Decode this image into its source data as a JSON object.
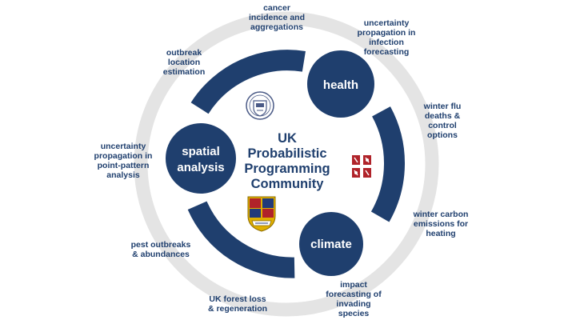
{
  "colors": {
    "primary": "#1f3f6e",
    "outer_ring": "#e4e4e4",
    "text_dark": "#1f3f6e",
    "white": "#ffffff",
    "oxford_seal": "#4a5a86",
    "warwick_red": "#b0232a",
    "imperial_gold": "#e0b000",
    "imperial_red": "#b0232a",
    "imperial_blue": "#223a7a"
  },
  "center": {
    "lines": [
      "UK",
      "Probabilistic",
      "Programming",
      "Community"
    ]
  },
  "nodes": {
    "health": "health",
    "spatial": [
      "spatial",
      "analysis"
    ],
    "climate": "climate"
  },
  "applications": {
    "cancer": [
      "cancer",
      "incidence and",
      "aggregations"
    ],
    "uncertainty_infection": [
      "uncertainty",
      "propagation in",
      "infection",
      "forecasting"
    ],
    "winter_flu": [
      "winter flu",
      "deaths &",
      "control",
      "options"
    ],
    "winter_carbon": [
      "winter carbon",
      "emissions for",
      "heating"
    ],
    "impact_forecasting": [
      "impact",
      "forecasting of",
      "invading",
      "species"
    ],
    "forest_loss": [
      "UK forest loss",
      "& regeneration"
    ],
    "pest_outbreaks": [
      "pest outbreaks",
      "& abundances"
    ],
    "uncertainty_point": [
      "uncertainty",
      "propagation in",
      "point-pattern",
      "analysis"
    ],
    "outbreak_location": [
      "outbreak",
      "location",
      "estimation"
    ]
  },
  "logos": {
    "oxford": "oxford-seal-icon",
    "warwick": "warwick-crest-icon",
    "imperial": "imperial-crest-icon"
  }
}
